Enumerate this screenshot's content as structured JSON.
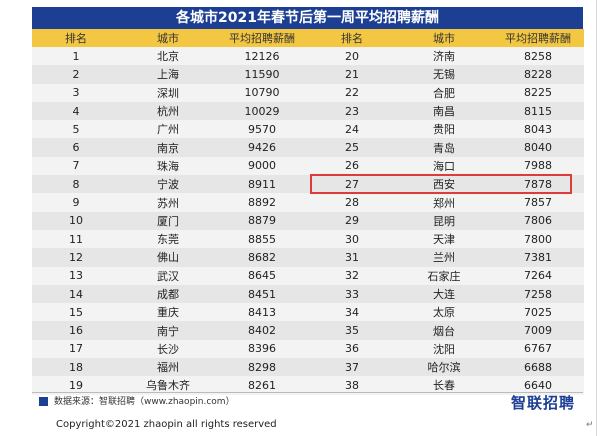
{
  "title": "各城市2021年春节后第一周平均招聘薪酬",
  "headers": {
    "rank": "排名",
    "city": "城市",
    "salary": "平均招聘薪酬"
  },
  "rows": [
    {
      "left": {
        "rank": "1",
        "city": "北京",
        "salary": "12126"
      },
      "right": {
        "rank": "20",
        "city": "济南",
        "salary": "8258"
      }
    },
    {
      "left": {
        "rank": "2",
        "city": "上海",
        "salary": "11590"
      },
      "right": {
        "rank": "21",
        "city": "无锡",
        "salary": "8228"
      }
    },
    {
      "left": {
        "rank": "3",
        "city": "深圳",
        "salary": "10790"
      },
      "right": {
        "rank": "22",
        "city": "合肥",
        "salary": "8225"
      }
    },
    {
      "left": {
        "rank": "4",
        "city": "杭州",
        "salary": "10029"
      },
      "right": {
        "rank": "23",
        "city": "南昌",
        "salary": "8115"
      }
    },
    {
      "left": {
        "rank": "5",
        "city": "广州",
        "salary": "9570"
      },
      "right": {
        "rank": "24",
        "city": "贵阳",
        "salary": "8043"
      }
    },
    {
      "left": {
        "rank": "6",
        "city": "南京",
        "salary": "9426"
      },
      "right": {
        "rank": "25",
        "city": "青岛",
        "salary": "8040"
      }
    },
    {
      "left": {
        "rank": "7",
        "city": "珠海",
        "salary": "9000"
      },
      "right": {
        "rank": "26",
        "city": "海口",
        "salary": "7988"
      }
    },
    {
      "left": {
        "rank": "8",
        "city": "宁波",
        "salary": "8911"
      },
      "right": {
        "rank": "27",
        "city": "西安",
        "salary": "7878"
      }
    },
    {
      "left": {
        "rank": "9",
        "city": "苏州",
        "salary": "8892"
      },
      "right": {
        "rank": "28",
        "city": "郑州",
        "salary": "7857"
      }
    },
    {
      "left": {
        "rank": "10",
        "city": "厦门",
        "salary": "8879"
      },
      "right": {
        "rank": "29",
        "city": "昆明",
        "salary": "7806"
      }
    },
    {
      "left": {
        "rank": "11",
        "city": "东莞",
        "salary": "8855"
      },
      "right": {
        "rank": "30",
        "city": "天津",
        "salary": "7800"
      }
    },
    {
      "left": {
        "rank": "12",
        "city": "佛山",
        "salary": "8682"
      },
      "right": {
        "rank": "31",
        "city": "兰州",
        "salary": "7381"
      }
    },
    {
      "left": {
        "rank": "13",
        "city": "武汉",
        "salary": "8645"
      },
      "right": {
        "rank": "32",
        "city": "石家庄",
        "salary": "7264"
      }
    },
    {
      "left": {
        "rank": "14",
        "city": "成都",
        "salary": "8451"
      },
      "right": {
        "rank": "33",
        "city": "大连",
        "salary": "7258"
      }
    },
    {
      "left": {
        "rank": "15",
        "city": "重庆",
        "salary": "8413"
      },
      "right": {
        "rank": "34",
        "city": "太原",
        "salary": "7025"
      }
    },
    {
      "left": {
        "rank": "16",
        "city": "南宁",
        "salary": "8402"
      },
      "right": {
        "rank": "35",
        "city": "烟台",
        "salary": "7009"
      }
    },
    {
      "left": {
        "rank": "17",
        "city": "长沙",
        "salary": "8396"
      },
      "right": {
        "rank": "36",
        "city": "沈阳",
        "salary": "6767"
      }
    },
    {
      "left": {
        "rank": "18",
        "city": "福州",
        "salary": "8298"
      },
      "right": {
        "rank": "37",
        "city": "哈尔滨",
        "salary": "6688"
      }
    },
    {
      "left": {
        "rank": "19",
        "city": "乌鲁木齐",
        "salary": "8261"
      },
      "right": {
        "rank": "38",
        "city": "长春",
        "salary": "6640"
      }
    }
  ],
  "highlighted_rank": "27",
  "footer": {
    "source": "数据来源：智联招聘（www.zhaopin.com）",
    "brand": "智联招聘"
  },
  "copyright": "Copyright©2021 zhaopin all rights reserved",
  "colors": {
    "title_bg": "#1c3f94",
    "header_bg": "#f3c742",
    "highlight_border": "#e03b3b"
  },
  "icons": {
    "legend": "blue-square-icon",
    "return_mark": "paragraph-mark-icon"
  }
}
